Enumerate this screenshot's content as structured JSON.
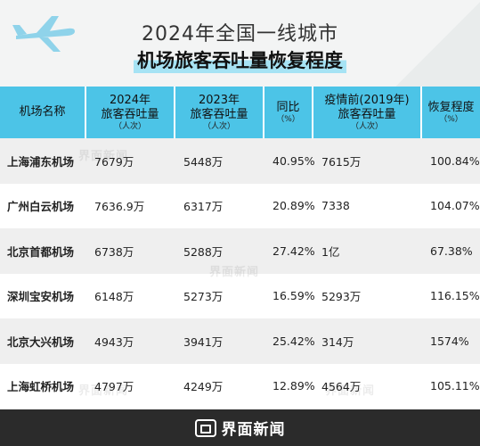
{
  "header": {
    "title_line1": "2024年全国一线城市",
    "title_line2": "机场旅客吞吐量恢复程度"
  },
  "table": {
    "columns": [
      {
        "label": "机场名称",
        "unit": ""
      },
      {
        "label": "2024年\n旅客吞吐量",
        "unit": "（人次）"
      },
      {
        "label": "2023年\n旅客吞吐量",
        "unit": "（人次）"
      },
      {
        "label": "同比",
        "unit": "（%）"
      },
      {
        "label": "疫情前(2019年)\n旅客吞吐量",
        "unit": "（人次）"
      },
      {
        "label": "恢复程度",
        "unit": "（%）"
      }
    ],
    "rows": [
      [
        "上海浦东机场",
        "7679万",
        "5448万",
        "40.95%",
        "7615万",
        "100.84%"
      ],
      [
        "广州白云机场",
        "7636.9万",
        "6317万",
        "20.89%",
        "7338",
        "104.07%"
      ],
      [
        "北京首都机场",
        "6738万",
        "5288万",
        "27.42%",
        "1亿",
        "67.38%"
      ],
      [
        "深圳宝安机场",
        "6148万",
        "5273万",
        "16.59%",
        "5293万",
        "116.15%"
      ],
      [
        "北京大兴机场",
        "4943万",
        "3941万",
        "25.42%",
        "314万",
        "1574%"
      ],
      [
        "上海虹桥机场",
        "4797万",
        "4249万",
        "12.89%",
        "4564万",
        "105.11%"
      ]
    ]
  },
  "watermark": "界面新闻",
  "footer": {
    "brand": "界面新闻"
  },
  "colors": {
    "header_row": "#4cc4e7",
    "title_highlight": "#a6e3f4",
    "footer_bg": "#2b2b2b"
  },
  "icons": {
    "title": "airplane-icon",
    "footer": "brand-logo-icon"
  }
}
